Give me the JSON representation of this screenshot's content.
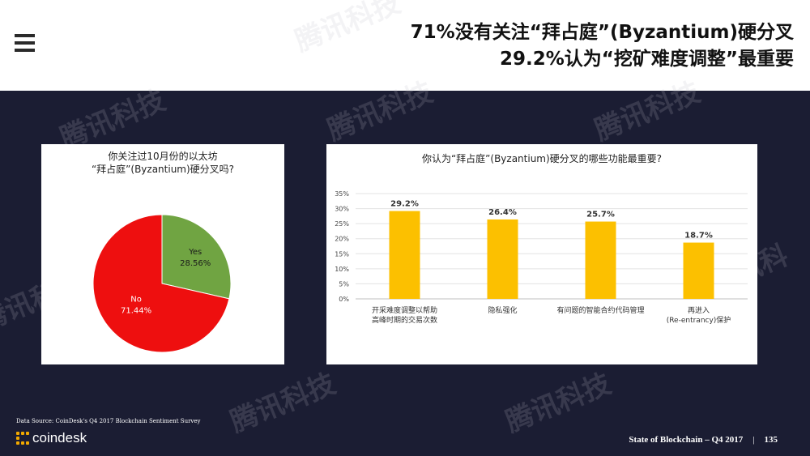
{
  "headline": {
    "line1": "71%没有关注“拜占庭”(Byzantium)硬分叉",
    "line2": "29.2%认为“挖矿难度调整”最重要"
  },
  "pie_panel": {
    "title_line1": "你关注过10月份的以太坊",
    "title_line2": "“拜占庭”(Byzantium)硬分叉吗?"
  },
  "bar_panel": {
    "title": "你认为“拜占庭”(Byzantium)硬分叉的哪些功能最重要?"
  },
  "chart_data": [
    {
      "type": "pie",
      "title": "你关注过10月份的以太坊 “拜占庭”(Byzantium)硬分叉吗?",
      "slices": [
        {
          "label": "Yes",
          "value": 28.56,
          "value_label": "28.56%",
          "color": "#70a442"
        },
        {
          "label": "No",
          "value": 71.44,
          "value_label": "71.44%",
          "color": "#ee0f0f"
        }
      ]
    },
    {
      "type": "bar",
      "title": "你认为“拜占庭”(Byzantium)硬分叉的哪些功能最重要?",
      "categories": [
        [
          "开采难度调整以帮助",
          "高峰时期的交易次数"
        ],
        [
          "隐私强化"
        ],
        [
          "有问题的智能合约代码管理"
        ],
        [
          "再进入",
          "(Re-entrancy)保护"
        ]
      ],
      "values": [
        29.2,
        26.4,
        25.7,
        18.7
      ],
      "value_labels": [
        "29.2%",
        "26.4%",
        "25.7%",
        "18.7%"
      ],
      "ylim": [
        0,
        35
      ],
      "yticks": [
        "0%",
        "5%",
        "10%",
        "15%",
        "20%",
        "25%",
        "30%",
        "35%"
      ],
      "grid": true,
      "color": "#fcc000"
    }
  ],
  "footer": {
    "source": "Data Source: CoinDesk's Q4 2017 Blockchain Sentiment Survey",
    "logo_text": "coindesk",
    "report": "State of Blockchain – Q4 2017",
    "separator": "|",
    "page": "135"
  },
  "watermark": "腾讯科技"
}
